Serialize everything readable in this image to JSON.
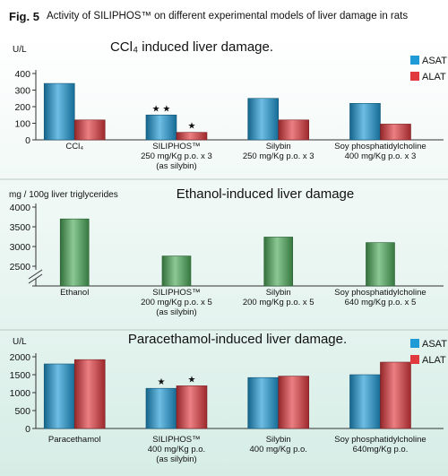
{
  "figure": {
    "label": "Fig. 5",
    "caption": "Activity of SILIPHOS™  on different experimental models of liver damage in rats",
    "bg_top": "#ffffff",
    "bg_bottom": "#d8eee8"
  },
  "chart_data": [
    {
      "type": "bar",
      "title": "CCl₄ induced liver damage.",
      "ylabel": "U/L",
      "ylim": [
        0,
        400
      ],
      "yticks": [
        0,
        100,
        200,
        300,
        400
      ],
      "axis_break": false,
      "categories": [
        [
          "CCl₄"
        ],
        [
          "SILIPHOS™",
          "250 mg/Kg p.o. x 3",
          "(as silybin)"
        ],
        [
          "Silybin",
          "250 mg/Kg p.o. x 3"
        ],
        [
          "Soy phosphatidylcholine",
          "400 mg/Kg p.o. x 3"
        ]
      ],
      "legend_position": "right",
      "series": [
        {
          "name": "ASAT",
          "color": "#1e9ad6",
          "values": [
            340,
            150,
            250,
            220
          ]
        },
        {
          "name": "ALAT",
          "color": "#e03a3f",
          "values": [
            120,
            45,
            120,
            95
          ]
        }
      ],
      "annotations": [
        {
          "category": 1,
          "series": 0,
          "text": "★ ★"
        },
        {
          "category": 1,
          "series": 1,
          "text": "★"
        }
      ]
    },
    {
      "type": "bar",
      "title": "Ethanol-induced liver damage",
      "ylabel": "mg / 100g liver triglycerides",
      "ylim": [
        2000,
        4000
      ],
      "yticks": [
        2000,
        2500,
        3000,
        3500,
        4000
      ],
      "axis_break": true,
      "categories": [
        [
          "Ethanol"
        ],
        [
          "SILIPHOS™",
          "200 mg/Kg p.o. x 5",
          "(as silybin)"
        ],
        [
          "Silybin",
          "200 mg/Kg p.o. x 5"
        ],
        [
          "Soy phosphatidylcholine",
          "640 mg/Kg p.o. x 5"
        ]
      ],
      "series": [
        {
          "name": "",
          "color": "#4dab5a",
          "values": [
            3700,
            2760,
            3240,
            3100
          ]
        }
      ],
      "annotations": []
    },
    {
      "type": "bar",
      "title": "Paracethamol-induced liver damage.",
      "ylabel": "U/L",
      "ylim": [
        0,
        2000
      ],
      "yticks": [
        0,
        500,
        1000,
        1500,
        2000
      ],
      "axis_break": false,
      "categories": [
        [
          "Paracethamol"
        ],
        [
          "SILIPHOS™",
          "400 mg/Kg p.o.",
          "(as silybin)"
        ],
        [
          "Silybin",
          "400 mg/Kg p.o."
        ],
        [
          "Soy phosphatidylcholine",
          "640mg/Kg p.o."
        ]
      ],
      "legend_position": "right",
      "series": [
        {
          "name": "ASAT",
          "color": "#1e9ad6",
          "values": [
            1800,
            1120,
            1420,
            1500
          ]
        },
        {
          "name": "ALAT",
          "color": "#e03a3f",
          "values": [
            1920,
            1190,
            1460,
            1850
          ]
        }
      ],
      "annotations": [
        {
          "category": 1,
          "series": 0,
          "text": "★"
        },
        {
          "category": 1,
          "series": 1,
          "text": "★"
        }
      ]
    }
  ]
}
